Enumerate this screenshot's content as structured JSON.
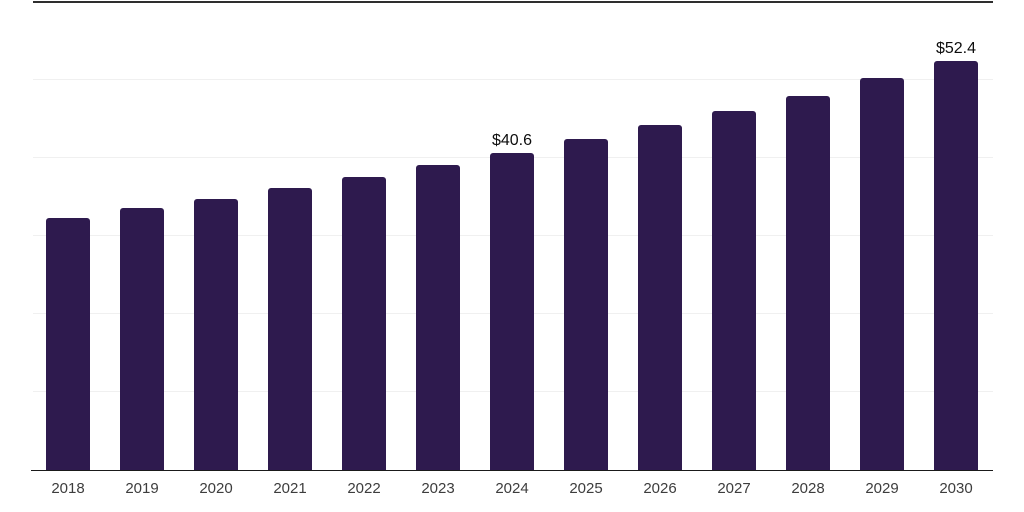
{
  "chart_data": {
    "type": "bar",
    "title": "",
    "xlabel": "",
    "ylabel": "",
    "categories": [
      "2018",
      "2019",
      "2020",
      "2021",
      "2022",
      "2023",
      "2024",
      "2025",
      "2026",
      "2027",
      "2028",
      "2029",
      "2030"
    ],
    "values": [
      32.3,
      33.5,
      34.7,
      36.1,
      37.5,
      39.0,
      40.6,
      42.3,
      44.1,
      46.0,
      47.9,
      50.1,
      52.4
    ],
    "data_labels": [
      "",
      "",
      "",
      "",
      "",
      "",
      "$40.6",
      "",
      "",
      "",
      "",
      "",
      "$52.4"
    ],
    "ylim": [
      0,
      60
    ],
    "gridline_values": [
      10,
      20,
      30,
      40,
      50
    ],
    "grid": "horizontal",
    "legend": "none"
  },
  "colors": {
    "bar": "#2e1a4e",
    "axis": "#1a1a1a",
    "gridline": "#f0f0f0",
    "top_border": "#2e2e2e",
    "tick_label": "#3d3d3d",
    "value_label": "#0d0d0d",
    "background": "#ffffff"
  }
}
